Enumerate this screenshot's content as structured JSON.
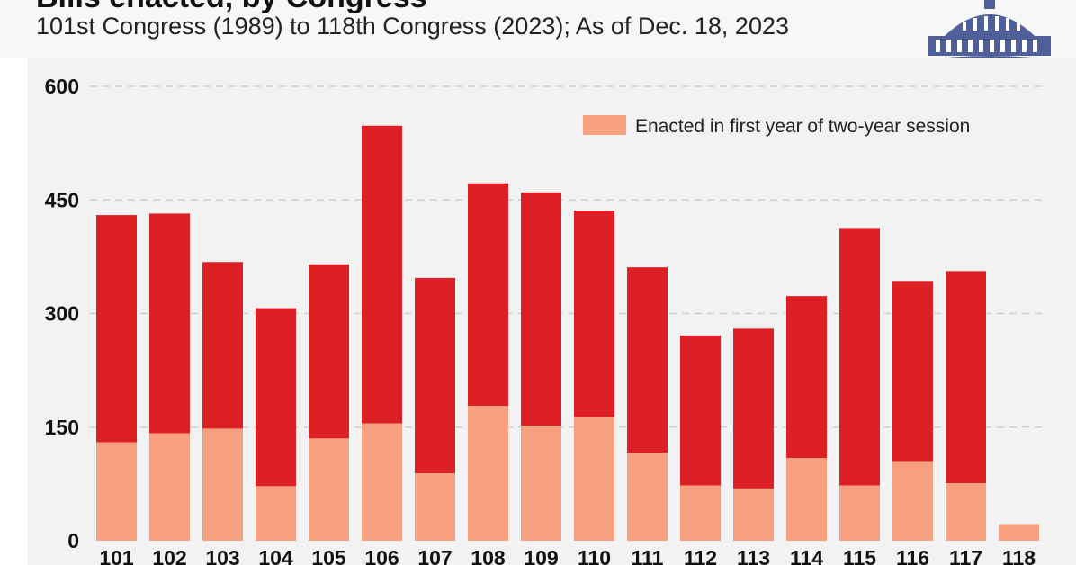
{
  "header": {
    "title": "Bills enacted, by Congress",
    "subtitle": "101st Congress (1989) to 118th Congress (2023); As of Dec. 18, 2023"
  },
  "icon": "capitol-dome-icon",
  "colors": {
    "total": "#dd1f26",
    "first_year": "#f7a080",
    "plot_background": "#f2f2f2",
    "gridline": "#cfcfcf"
  },
  "chart_data": {
    "type": "bar",
    "stacked": true,
    "categories": [
      "101",
      "102",
      "103",
      "104",
      "105",
      "106",
      "107",
      "108",
      "109",
      "110",
      "111",
      "112",
      "113",
      "114",
      "115",
      "116",
      "117",
      "118"
    ],
    "series": [
      {
        "name": "Enacted in first year of two-year session",
        "values": [
          130,
          142,
          148,
          72,
          135,
          155,
          89,
          178,
          152,
          163,
          116,
          73,
          69,
          109,
          73,
          105,
          76,
          22
        ]
      },
      {
        "name": "",
        "values": [
          300,
          290,
          220,
          235,
          230,
          393,
          258,
          294,
          308,
          273,
          245,
          198,
          211,
          214,
          340,
          238,
          280,
          0
        ]
      }
    ],
    "totals": [
      430,
      432,
      368,
      307,
      365,
      548,
      347,
      472,
      460,
      436,
      361,
      271,
      280,
      323,
      413,
      343,
      356,
      22
    ],
    "yticks": [
      0,
      150,
      300,
      450,
      600
    ],
    "ylim": [
      0,
      600
    ],
    "grid": true,
    "legend_position": "top-right",
    "title": "Bills enacted, by Congress",
    "subtitle": "101st Congress (1989) to 118th Congress (2023); As of Dec. 18, 2023",
    "xlabel": "",
    "ylabel": ""
  }
}
